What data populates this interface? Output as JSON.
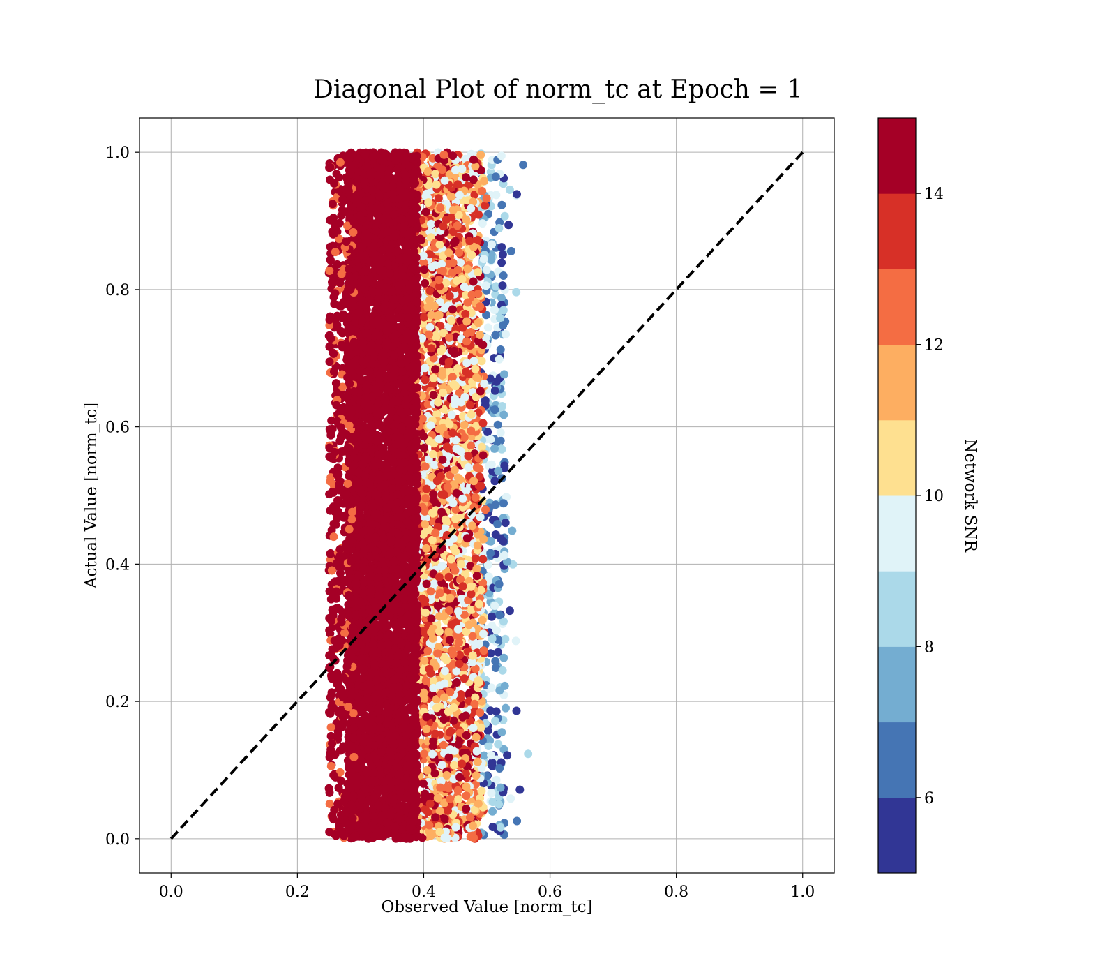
{
  "chart_data": {
    "type": "scatter",
    "title": "Diagonal Plot of norm_tc at Epoch = 1",
    "xlabel": "Observed Value [norm_tc]",
    "ylabel": "Actual Value [norm_tc]",
    "xlim": [
      -0.05,
      1.05
    ],
    "ylim": [
      -0.05,
      1.05
    ],
    "x_ticks": [
      "0.0",
      "0.2",
      "0.4",
      "0.6",
      "0.8",
      "1.0"
    ],
    "y_ticks": [
      "0.0",
      "0.2",
      "0.4",
      "0.6",
      "0.8",
      "1.0"
    ],
    "grid": true,
    "reference_line": {
      "style": "dashed",
      "color": "#000000",
      "points": [
        [
          0.0,
          0.0
        ],
        [
          1.0,
          1.0
        ]
      ]
    },
    "point_clusters": [
      {
        "snr_level": "high",
        "x_range": [
          0.28,
          0.39
        ],
        "y_range": [
          0.0,
          1.0
        ],
        "density": "very dense"
      },
      {
        "snr_level": "mid",
        "x_range": [
          0.39,
          0.49
        ],
        "y_range": [
          0.0,
          1.0
        ],
        "density": "dense"
      },
      {
        "snr_level": "low",
        "x_range": [
          0.49,
          0.53
        ],
        "y_range": [
          0.0,
          1.0
        ],
        "density": "sparse"
      }
    ],
    "colorbar": {
      "label": "Network SNR",
      "range": [
        5,
        15
      ],
      "ticks": [
        "6",
        "8",
        "10",
        "12",
        "14"
      ],
      "colors": [
        "#313695",
        "#4575b4",
        "#74add1",
        "#abd9e9",
        "#e0f3f8",
        "#fee090",
        "#fdae61",
        "#f46d43",
        "#d73027",
        "#a50026"
      ]
    }
  }
}
